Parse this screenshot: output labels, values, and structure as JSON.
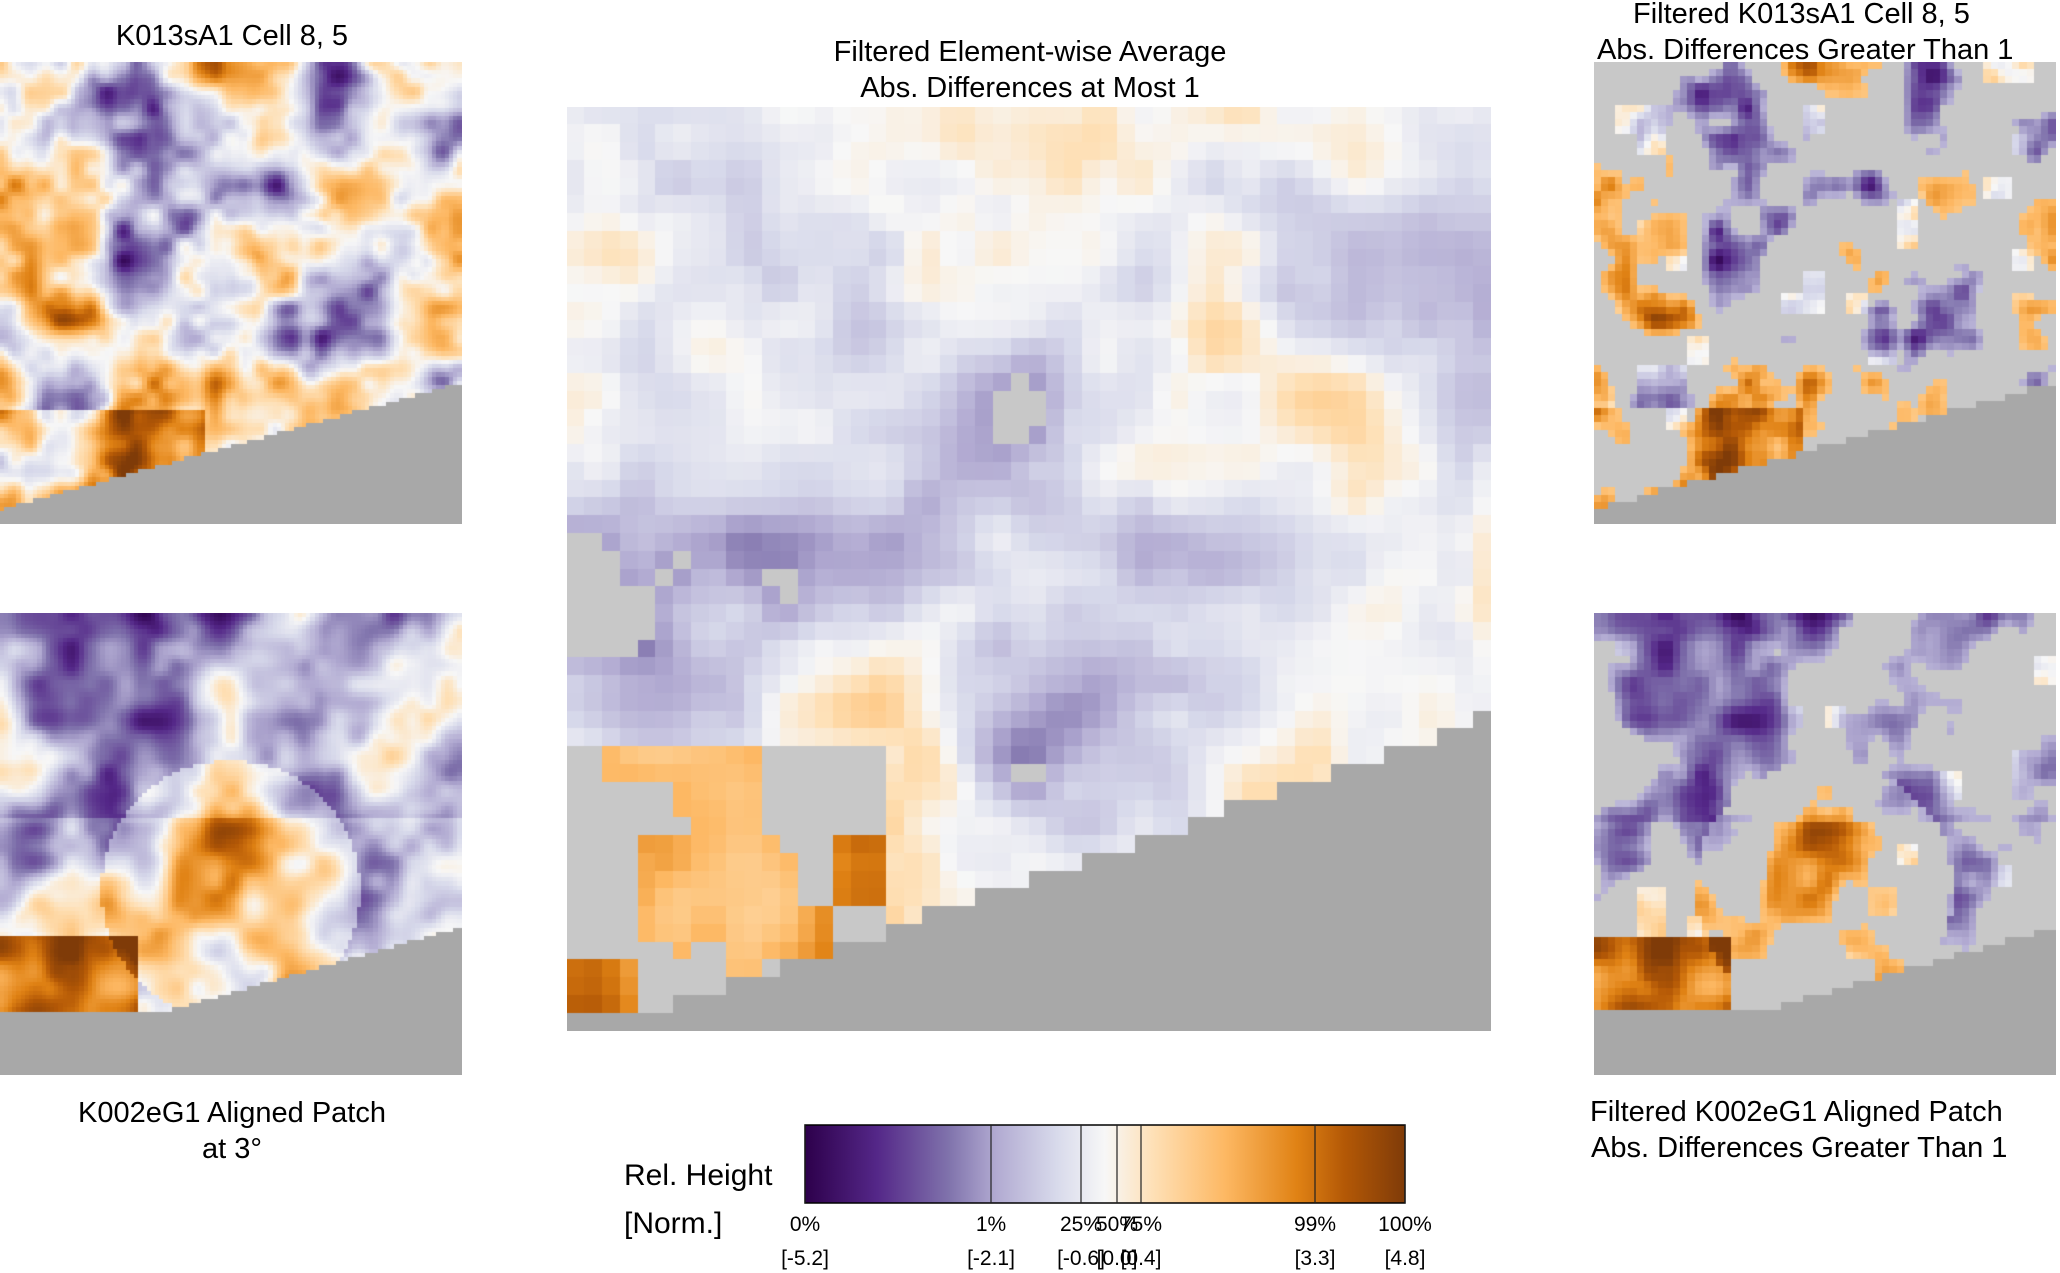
{
  "panels": {
    "top_left": {
      "title_lines": [
        "K013sA1 Cell 8, 5"
      ]
    },
    "bottom_left": {
      "title_lines": [
        "K002eG1 Aligned Patch",
        "at 3°"
      ]
    },
    "center": {
      "title_lines": [
        "Filtered Element-wise Average",
        "Abs. Differences at Most 1"
      ]
    },
    "top_right": {
      "title_lines": [
        "Filtered K013sA1 Cell 8, 5",
        "Abs. Differences Greater Than 1"
      ]
    },
    "bottom_right": {
      "title_lines": [
        "Filtered K002eG1 Aligned Patch",
        "Abs. Differences Greater Than 1"
      ]
    }
  },
  "colorbar": {
    "label_line1": "Rel. Height",
    "label_line2": "[Norm.]",
    "colors": [
      "#2d004b",
      "#542788",
      "#8073ac",
      "#b2abd2",
      "#d8daeb",
      "#f7f7f7",
      "#fee0b6",
      "#fdb863",
      "#e08214",
      "#b35806",
      "#7f3b08"
    ],
    "ticks": [
      {
        "pct": "0%",
        "value": "[-5.2]",
        "at": 0.0
      },
      {
        "pct": "1%",
        "value": "[-2.1]",
        "at": 0.31
      },
      {
        "pct": "25%",
        "value": "[-0.6]",
        "at": 0.46
      },
      {
        "pct": "50%",
        "value": "[0.0]",
        "at": 0.52
      },
      {
        "pct": "75%",
        "value": "[0.4]",
        "at": 0.56
      },
      {
        "pct": "99%",
        "value": "[3.3]",
        "at": 0.85
      },
      {
        "pct": "100%",
        "value": "[4.8]",
        "at": 1.0
      }
    ]
  },
  "chart_data": {
    "type": "heatmap",
    "panels": [
      "K013sA1 Cell 8, 5",
      "K002eG1 Aligned Patch at 3°",
      "Filtered Element-wise Average",
      "Filtered K013sA1 Cell 8, 5",
      "Filtered K002eG1 Aligned Patch"
    ],
    "value_range": [
      -5.2,
      4.8
    ],
    "colormap": "purple-orange diverging",
    "missing_color": "#a8a8a8",
    "filtered_color": "#c8c8c8",
    "legend_position": "bottom-center"
  }
}
